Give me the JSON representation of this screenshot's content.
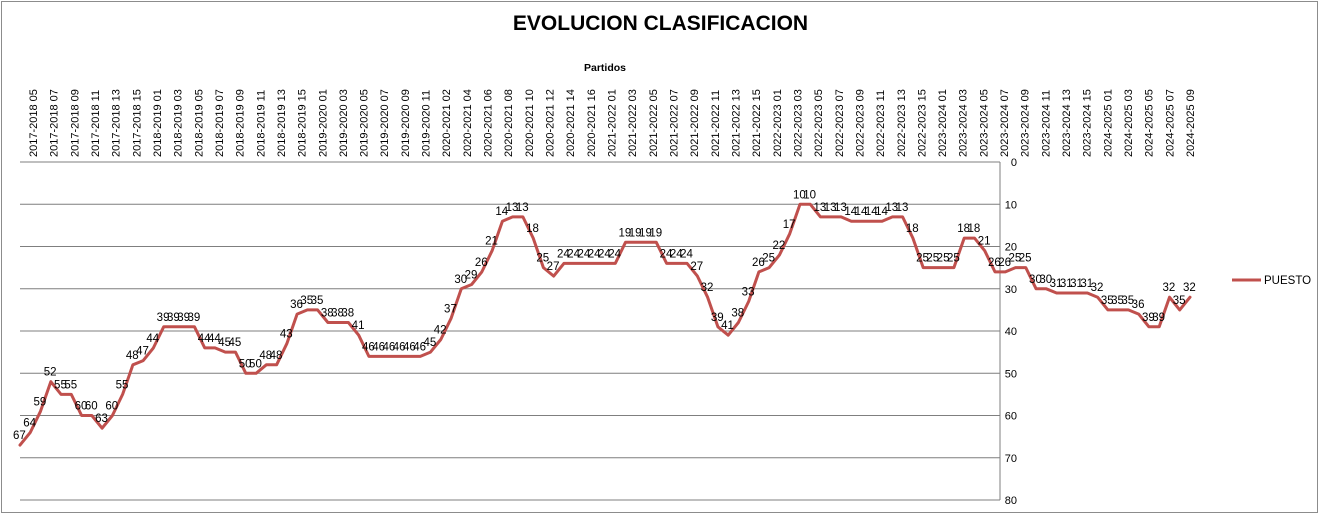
{
  "chart_data": {
    "type": "line",
    "title": "EVOLUCION CLASIFICACION",
    "xlabel": "Partidos",
    "ylabel": "",
    "ylim": [
      0,
      80
    ],
    "y_inverted": true,
    "y_ticks": [
      0,
      10,
      20,
      30,
      40,
      50,
      60,
      70,
      80
    ],
    "grid": true,
    "legend": "right",
    "x_tick_labels": [
      "2017-2018 05",
      "2017-2018 07",
      "2017-2018 09",
      "2017-2018 11",
      "2017-2018 13",
      "2017-2018 15",
      "2018-2019 01",
      "2018-2019 03",
      "2018-2019 05",
      "2018-2019 07",
      "2018-2019 09",
      "2018-2019 11",
      "2018-2019 13",
      "2018-2019 15",
      "2019-2020 01",
      "2019-2020 03",
      "2019-2020 05",
      "2019-2020 07",
      "2019-2020 09",
      "2019-2020 11",
      "2020-2021 02",
      "2020-2021 04",
      "2020-2021 06",
      "2020-2021 08",
      "2020-2021 10",
      "2020-2021 12",
      "2020-2021 14",
      "2020-2021 16",
      "2021-2022 01",
      "2021-2022 03",
      "2021-2022 05",
      "2021-2022 07",
      "2021-2022 09",
      "2021-2022 11",
      "2021-2022 13",
      "2021-2022 15",
      "2022-2023 01",
      "2022-2023 03",
      "2022-2023 05",
      "2022-2023 07",
      "2022-2023 09",
      "2022-2023 11",
      "2022-2023 13",
      "2022-2023 15",
      "2023-2024 01",
      "2023-2024 03",
      "2023-2024 05",
      "2023-2024 07",
      "2023-2024 09",
      "2023-2024 11",
      "2023-2024 13",
      "2023-2024 15",
      "2024-2025 01",
      "2024-2025 03",
      "2024-2025 05",
      "2024-2025 07",
      "2024-2025 09"
    ],
    "series": [
      {
        "name": "PUESTO",
        "color": "#c0504d",
        "values": [
          67,
          64,
          59,
          52,
          55,
          55,
          60,
          60,
          63,
          60,
          55,
          48,
          47,
          44,
          39,
          39,
          39,
          39,
          44,
          44,
          45,
          45,
          50,
          50,
          48,
          48,
          43,
          36,
          35,
          35,
          38,
          38,
          38,
          41,
          46,
          46,
          46,
          46,
          46,
          46,
          45,
          42,
          37,
          30,
          29,
          26,
          21,
          14,
          13,
          13,
          18,
          25,
          27,
          24,
          24,
          24,
          24,
          24,
          24,
          19,
          19,
          19,
          19,
          24,
          24,
          24,
          27,
          32,
          39,
          41,
          38,
          33,
          26,
          25,
          22,
          17,
          10,
          10,
          13,
          13,
          13,
          14,
          14,
          14,
          14,
          13,
          13,
          18,
          25,
          25,
          25,
          25,
          18,
          18,
          21,
          26,
          26,
          25,
          25,
          30,
          30,
          31,
          31,
          31,
          31,
          32,
          35,
          35,
          35,
          36,
          39,
          39,
          32,
          35,
          32
        ]
      }
    ]
  }
}
